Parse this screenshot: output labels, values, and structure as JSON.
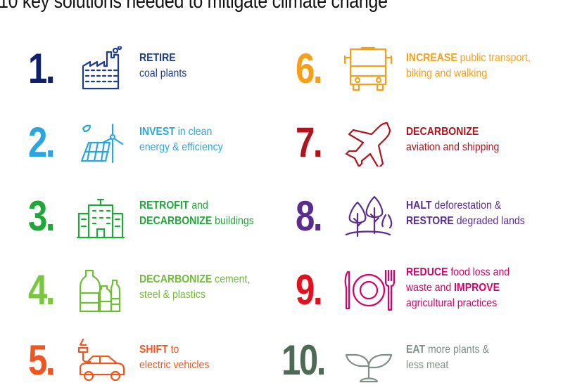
{
  "title": "10 key solutions needed to mitigate climate change",
  "items": [
    {
      "number": "1.",
      "icon": "factory-icon",
      "color": "#10206e",
      "text_color": "#1d3b8f",
      "lines": [
        [
          {
            "b": "RETIRE"
          }
        ],
        [
          {
            "t": "coal plants"
          }
        ]
      ]
    },
    {
      "number": "2.",
      "icon": "solar-wind-icon",
      "color": "#2aa6df",
      "text_color": "#2aa6df",
      "lines": [
        [
          {
            "b": "INVEST"
          },
          {
            "t": " in clean"
          }
        ],
        [
          {
            "t": "energy & efficiency"
          }
        ]
      ]
    },
    {
      "number": "3.",
      "icon": "buildings-icon",
      "color": "#1fa739",
      "text_color": "#1fa739",
      "lines": [
        [
          {
            "b": "RETROFIT"
          },
          {
            "t": " and"
          }
        ],
        [
          {
            "b": "DECARBONIZE"
          },
          {
            "t": " buildings"
          }
        ]
      ]
    },
    {
      "number": "4.",
      "icon": "bottles-icon",
      "color": "#79c73f",
      "text_color": "#6dbd35",
      "lines": [
        [
          {
            "b": "DECARBONIZE"
          },
          {
            "t": " cement,"
          }
        ],
        [
          {
            "t": "steel & plastics"
          }
        ]
      ]
    },
    {
      "number": "5.",
      "icon": "electric-car-icon",
      "color": "#f2541f",
      "text_color": "#f2541f",
      "lines": [
        [
          {
            "b": "SHIFT"
          },
          {
            "t": " to"
          }
        ],
        [
          {
            "t": "electric vehicles"
          }
        ]
      ]
    },
    {
      "number": "6.",
      "icon": "bus-icon",
      "color": "#f6a01a",
      "text_color": "#f6a01a",
      "lines": [
        [
          {
            "b": "INCREASE"
          },
          {
            "t": " public transport,"
          }
        ],
        [
          {
            "t": "biking and walking"
          }
        ]
      ]
    },
    {
      "number": "7.",
      "icon": "airplane-icon",
      "color": "#b1121c",
      "text_color": "#b1121c",
      "lines": [
        [
          {
            "b": "DECARBONIZE"
          }
        ],
        [
          {
            "t": "aviation and shipping"
          }
        ]
      ]
    },
    {
      "number": "8.",
      "icon": "trees-icon",
      "color": "#5a2c8e",
      "text_color": "#5a2c8e",
      "lines": [
        [
          {
            "b": "HALT"
          },
          {
            "t": " deforestation &"
          }
        ],
        [
          {
            "b": "RESTORE"
          },
          {
            "t": " degraded lands"
          }
        ]
      ]
    },
    {
      "number": "9.",
      "icon": "plate-cutlery-icon",
      "color": "#e5101e",
      "text_color": "#d4006c",
      "lines": [
        [
          {
            "b": "REDUCE"
          },
          {
            "t": " food loss and"
          }
        ],
        [
          {
            "t": "waste and "
          },
          {
            "b": "IMPROVE"
          }
        ],
        [
          {
            "t": "agricultural practices"
          }
        ]
      ]
    },
    {
      "number": "10.",
      "icon": "sprout-icon",
      "color": "#4c6a54",
      "text_color": "#7f8f85",
      "lines": [
        [
          {
            "b": "EAT"
          },
          {
            "t": " more plants &"
          }
        ],
        [
          {
            "t": "less meat"
          }
        ]
      ]
    }
  ]
}
